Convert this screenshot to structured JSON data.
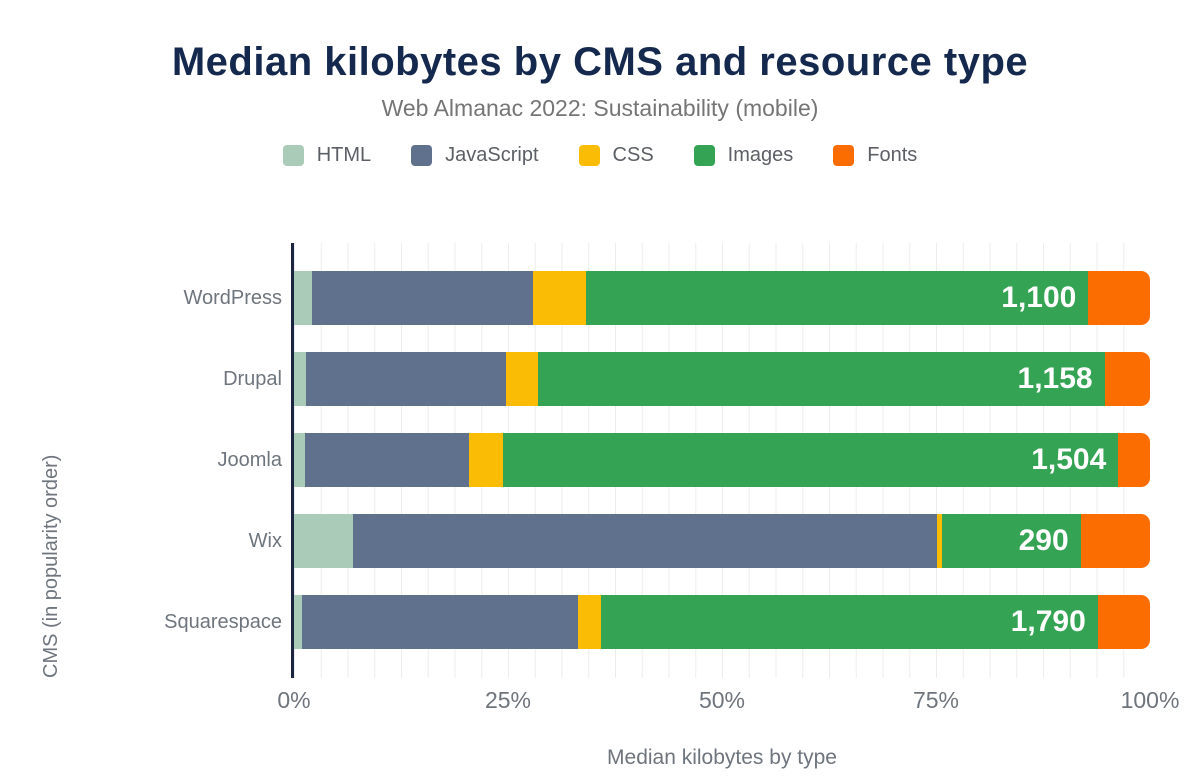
{
  "header": {
    "title": "Median kilobytes by CMS and resource type",
    "subtitle": "Web Almanac 2022: Sustainability (mobile)"
  },
  "chart_data": {
    "type": "bar",
    "orientation": "horizontal",
    "stacked": true,
    "units": "percent of total kilobytes",
    "categories": [
      "WordPress",
      "Drupal",
      "Joomla",
      "Wix",
      "Squarespace"
    ],
    "series": [
      {
        "name": "HTML",
        "color": "#a9cbb7",
        "values": [
          2.1,
          1.4,
          1.3,
          6.9,
          0.9
        ]
      },
      {
        "name": "JavaScript",
        "color": "#5f718c",
        "values": [
          25.8,
          23.4,
          19.1,
          68.2,
          32.3
        ]
      },
      {
        "name": "CSS",
        "color": "#fbbc05",
        "values": [
          6.2,
          3.7,
          4.0,
          0.6,
          2.7
        ]
      },
      {
        "name": "Images",
        "color": "#34a353",
        "values": [
          58.7,
          66.2,
          71.9,
          16.2,
          58.0
        ]
      },
      {
        "name": "Fonts",
        "color": "#fb6d00",
        "values": [
          7.2,
          5.3,
          3.7,
          8.1,
          6.1
        ]
      }
    ],
    "bar_labels": [
      "1,100",
      "1,158",
      "1,504",
      "290",
      "1,790"
    ],
    "bar_label_series": "Images",
    "x_ticks": [
      "0%",
      "25%",
      "50%",
      "75%",
      "100%"
    ],
    "xlim": [
      0,
      100
    ],
    "xlabel": "Median kilobytes by type",
    "ylabel": "CMS (in popularity order)",
    "grid": "vertical",
    "legend_position": "top"
  },
  "colors": {
    "title": "#14294d",
    "subtitle": "#757575",
    "axis_text": "#6e757d",
    "axis_line": "#1c2540",
    "gridline": "#ededed",
    "background": "#ffffff",
    "bar_label_text": "#ffffff"
  }
}
